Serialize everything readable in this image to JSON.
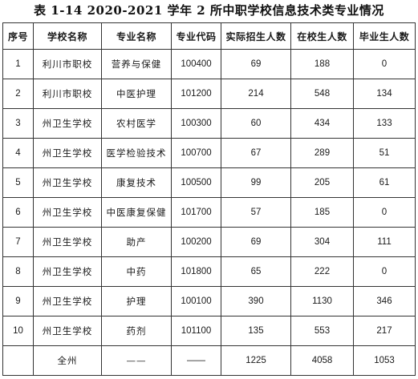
{
  "title": "表 1-14   2020-2021 学年 2 所中职学校信息技术类专业情况",
  "columns": [
    "序号",
    "学校名称",
    "专业名称",
    "专业代码",
    "实际招生人数",
    "在校生人数",
    "毕业生人数"
  ],
  "rows": [
    {
      "no": "1",
      "school": "利川市职校",
      "major": "营养与保健",
      "code": "100400",
      "enrolled": "69",
      "students": "188",
      "graduates": "0"
    },
    {
      "no": "2",
      "school": "利川市职校",
      "major": "中医护理",
      "code": "101200",
      "enrolled": "214",
      "students": "548",
      "graduates": "134"
    },
    {
      "no": "3",
      "school": "州卫生学校",
      "major": "农村医学",
      "code": "100300",
      "enrolled": "60",
      "students": "434",
      "graduates": "133"
    },
    {
      "no": "4",
      "school": "州卫生学校",
      "major": "医学检验技术",
      "code": "100700",
      "enrolled": "67",
      "students": "289",
      "graduates": "51"
    },
    {
      "no": "5",
      "school": "州卫生学校",
      "major": "康复技术",
      "code": "100500",
      "enrolled": "99",
      "students": "205",
      "graduates": "61"
    },
    {
      "no": "6",
      "school": "州卫生学校",
      "major": "中医康复保健",
      "code": "101700",
      "enrolled": "57",
      "students": "185",
      "graduates": "0"
    },
    {
      "no": "7",
      "school": "州卫生学校",
      "major": "助产",
      "code": "100200",
      "enrolled": "69",
      "students": "304",
      "graduates": "111"
    },
    {
      "no": "8",
      "school": "州卫生学校",
      "major": "中药",
      "code": "101800",
      "enrolled": "65",
      "students": "222",
      "graduates": "0"
    },
    {
      "no": "9",
      "school": "州卫生学校",
      "major": "护理",
      "code": "100100",
      "enrolled": "390",
      "students": "1130",
      "graduates": "346"
    },
    {
      "no": "10",
      "school": "州卫生学校",
      "major": "药剂",
      "code": "101100",
      "enrolled": "135",
      "students": "553",
      "graduates": "217"
    }
  ],
  "total": {
    "no": "",
    "school": "全州",
    "major": "——",
    "code": "——",
    "enrolled": "1225",
    "students": "4058",
    "graduates": "1053"
  }
}
